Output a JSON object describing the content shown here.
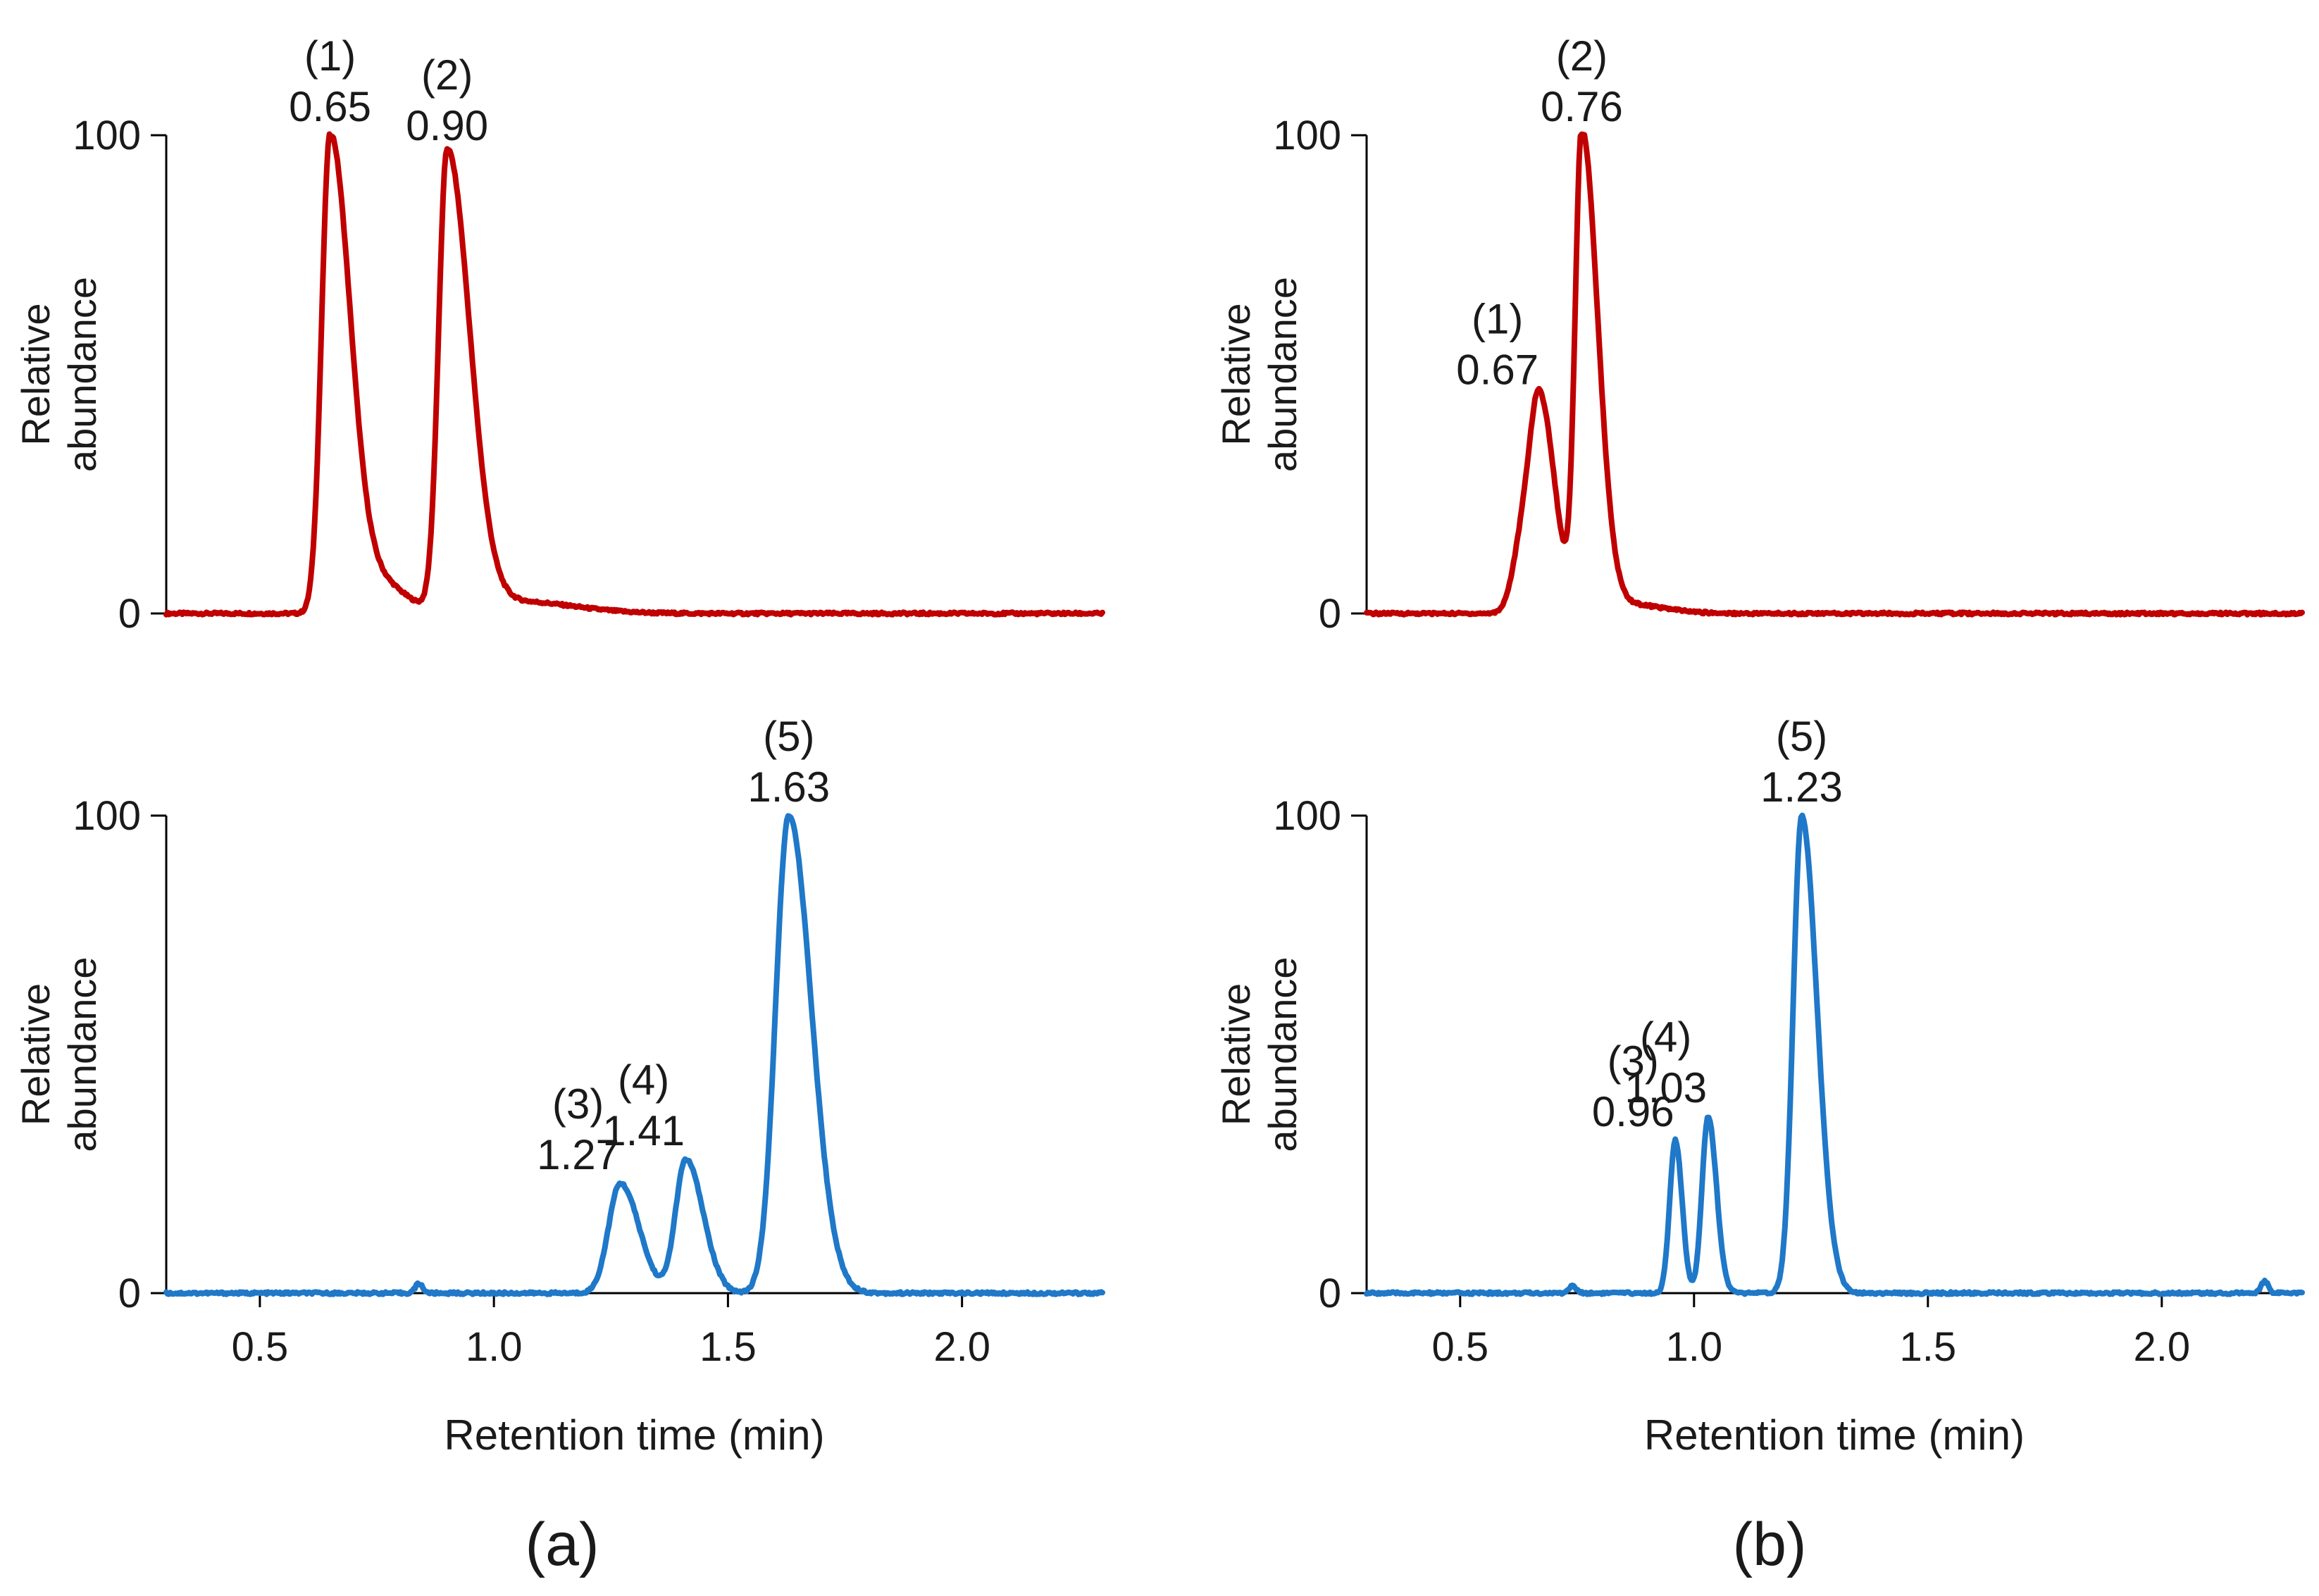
{
  "chart_data": [
    {
      "id": "a-top",
      "panel": "a",
      "type": "line",
      "color": "#c00000",
      "xlim": [
        0.3,
        2.3
      ],
      "ylim": [
        0,
        100
      ],
      "yticks": [
        "100",
        "0"
      ],
      "ylabel_line1": "Relative",
      "ylabel_line2": "abundance",
      "show_xaxis": false,
      "peaks": [
        {
          "label": "(1)",
          "rt": "0.65",
          "x": 0.65,
          "height": 100,
          "width": 0.018,
          "tail": 0.05
        },
        {
          "label": "(2)",
          "rt": "0.90",
          "x": 0.9,
          "height": 96,
          "width": 0.018,
          "tail": 0.06
        }
      ],
      "background": [
        {
          "x": 0.76,
          "height": 6,
          "width": 0.05
        },
        {
          "x": 1.05,
          "height": 2.5,
          "width": 0.12
        }
      ]
    },
    {
      "id": "a-bottom",
      "panel": "a",
      "type": "line",
      "color": "#1f78c8",
      "xlim": [
        0.3,
        2.3
      ],
      "ylim": [
        0,
        100
      ],
      "yticks": [
        "100",
        "0"
      ],
      "ylabel_line1": "Relative",
      "ylabel_line2": "abundance",
      "show_xaxis": true,
      "xticks": [
        "0.5",
        "1.0",
        "1.5",
        "2.0"
      ],
      "xtick_values": [
        0.5,
        1.0,
        1.5,
        2.0
      ],
      "xlabel": "Retention time (min)",
      "peaks": [
        {
          "label": "(3)",
          "rt": "1.27",
          "x": 1.27,
          "height": 23,
          "width": 0.025,
          "tail": 0.03
        },
        {
          "label": "(4)",
          "rt": "1.41",
          "x": 1.41,
          "height": 28,
          "width": 0.022,
          "tail": 0.03
        },
        {
          "label": "(5)",
          "rt": "1.63",
          "x": 1.63,
          "height": 100,
          "width": 0.028,
          "tail": 0.04
        }
      ],
      "background": [
        {
          "x": 0.84,
          "height": 2,
          "width": 0.008
        }
      ]
    },
    {
      "id": "b-top",
      "panel": "b",
      "type": "line",
      "color": "#c00000",
      "xlim": [
        0.3,
        2.3
      ],
      "ylim": [
        0,
        100
      ],
      "yticks": [
        "100",
        "0"
      ],
      "ylabel_line1": "Relative",
      "ylabel_line2": "abundance",
      "show_xaxis": false,
      "peaks": [
        {
          "label": "(1)",
          "rt": "0.67",
          "x": 0.67,
          "height": 45,
          "width": 0.022,
          "tail": 0.02
        },
        {
          "label": "(2)",
          "rt": "0.76",
          "x": 0.76,
          "height": 100,
          "width": 0.014,
          "tail": 0.04
        }
      ],
      "background": [
        {
          "x": 0.63,
          "height": 12,
          "width": 0.02
        },
        {
          "x": 0.85,
          "height": 2,
          "width": 0.08
        }
      ]
    },
    {
      "id": "b-bottom",
      "panel": "b",
      "type": "line",
      "color": "#1f78c8",
      "xlim": [
        0.3,
        2.3
      ],
      "ylim": [
        0,
        100
      ],
      "yticks": [
        "100",
        "0"
      ],
      "ylabel_line1": "Relative",
      "ylabel_line2": "abundance",
      "show_xaxis": true,
      "xticks": [
        "0.5",
        "1.0",
        "1.5",
        "2.0"
      ],
      "xtick_values": [
        0.5,
        1.0,
        1.5,
        2.0
      ],
      "xlabel": "Retention time (min)",
      "peaks": [
        {
          "label": "(3)",
          "rt": "0.96",
          "x": 0.96,
          "height": 32,
          "width": 0.012,
          "tail": 0.005
        },
        {
          "label": "(4)",
          "rt": "1.03",
          "x": 1.03,
          "height": 37,
          "width": 0.013,
          "tail": 0.01
        },
        {
          "label": "(5)",
          "rt": "1.23",
          "x": 1.23,
          "height": 100,
          "width": 0.018,
          "tail": 0.03
        }
      ],
      "background": [
        {
          "x": 0.74,
          "height": 1.5,
          "width": 0.008
        },
        {
          "x": 2.22,
          "height": 2.5,
          "width": 0.008
        }
      ]
    }
  ],
  "panel_labels": {
    "a": "(a)",
    "b": "(b)"
  }
}
